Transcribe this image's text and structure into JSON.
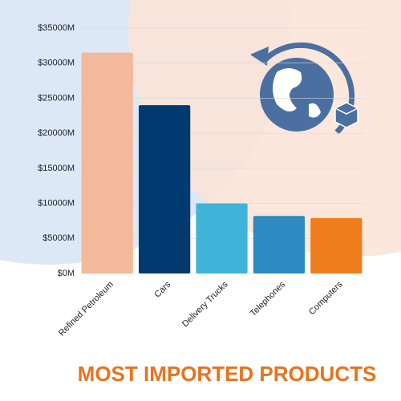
{
  "chart_data": {
    "type": "bar",
    "title": "MOST IMPORTED PRODUCTS",
    "categories": [
      "Refined Petroleum",
      "Cars",
      "Delivery Trucks",
      "Telephones",
      "Computers"
    ],
    "values": [
      31500,
      24000,
      10000,
      8200,
      7900
    ],
    "colors": [
      "#f4b89a",
      "#003a70",
      "#40b4d8",
      "#2e8ac0",
      "#f07d1c"
    ],
    "ylim": [
      0,
      35000
    ],
    "yticks": [
      {
        "value": 0,
        "label": "$0M"
      },
      {
        "value": 5000,
        "label": "$5000M"
      },
      {
        "value": 10000,
        "label": "$10000M"
      },
      {
        "value": 15000,
        "label": "$15000M"
      },
      {
        "value": 20000,
        "label": "$20000M"
      },
      {
        "value": 25000,
        "label": "$25000M"
      },
      {
        "value": 30000,
        "label": "$30000M"
      },
      {
        "value": 35000,
        "label": "$35000M"
      }
    ],
    "grid": true
  }
}
